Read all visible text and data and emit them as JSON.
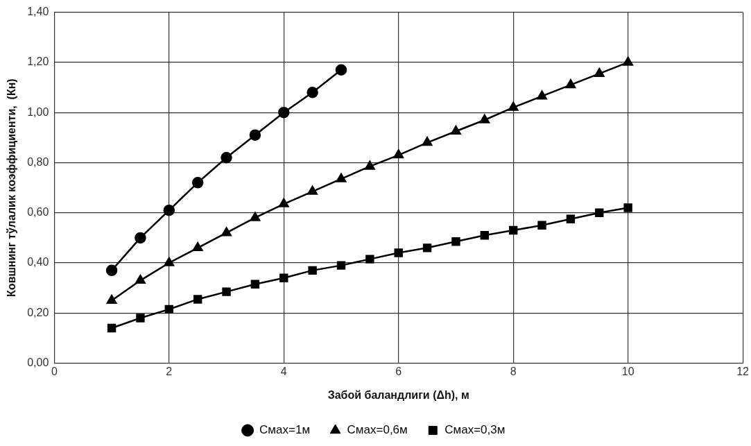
{
  "chart_data": {
    "type": "line",
    "xlabel": "Забой баландлиги (Δh), м",
    "ylabel": "Ковшнинг тўлалик коэффициенти,  (Кн)",
    "x": [
      1,
      1.5,
      2,
      2.5,
      3,
      3.5,
      4,
      4.5,
      5,
      5.5,
      6,
      6.5,
      7,
      7.5,
      8,
      8.5,
      9,
      9.5,
      10
    ],
    "series": [
      {
        "name": "Cмах=1м",
        "color": "#000000",
        "marker": "circle",
        "x": [
          1,
          1.5,
          2,
          2.5,
          3,
          3.5,
          4,
          4.5,
          5
        ],
        "values": [
          0.37,
          0.5,
          0.61,
          0.72,
          0.82,
          0.91,
          1.0,
          1.08,
          1.17
        ]
      },
      {
        "name": "Cмах=0,6м",
        "color": "#000000",
        "marker": "triangle",
        "values": [
          0.25,
          0.33,
          0.4,
          0.46,
          0.52,
          0.58,
          0.635,
          0.685,
          0.735,
          0.785,
          0.83,
          0.88,
          0.925,
          0.97,
          1.02,
          1.065,
          1.11,
          1.155,
          1.2
        ]
      },
      {
        "name": "Cмах=0,3м",
        "color": "#000000",
        "marker": "square",
        "values": [
          0.14,
          0.18,
          0.215,
          0.255,
          0.285,
          0.315,
          0.34,
          0.37,
          0.39,
          0.415,
          0.44,
          0.46,
          0.485,
          0.51,
          0.53,
          0.55,
          0.575,
          0.6,
          0.62
        ]
      }
    ],
    "xlim": [
      0,
      12
    ],
    "xticks": [
      0,
      2,
      4,
      6,
      8,
      10,
      12
    ],
    "ylim": [
      0,
      1.4
    ],
    "yticks": [
      {
        "value": 0,
        "label": "0,00"
      },
      {
        "value": 0.2,
        "label": "0,20"
      },
      {
        "value": 0.4,
        "label": "0,40"
      },
      {
        "value": 0.6,
        "label": "0,60"
      },
      {
        "value": 0.8,
        "label": "0,80"
      },
      {
        "value": 1.0,
        "label": "1,00"
      },
      {
        "value": 1.2,
        "label": "1,20"
      },
      {
        "value": 1.4,
        "label": "1,40"
      }
    ],
    "grid": true,
    "legend": "bottom",
    "line_style": "solid"
  }
}
